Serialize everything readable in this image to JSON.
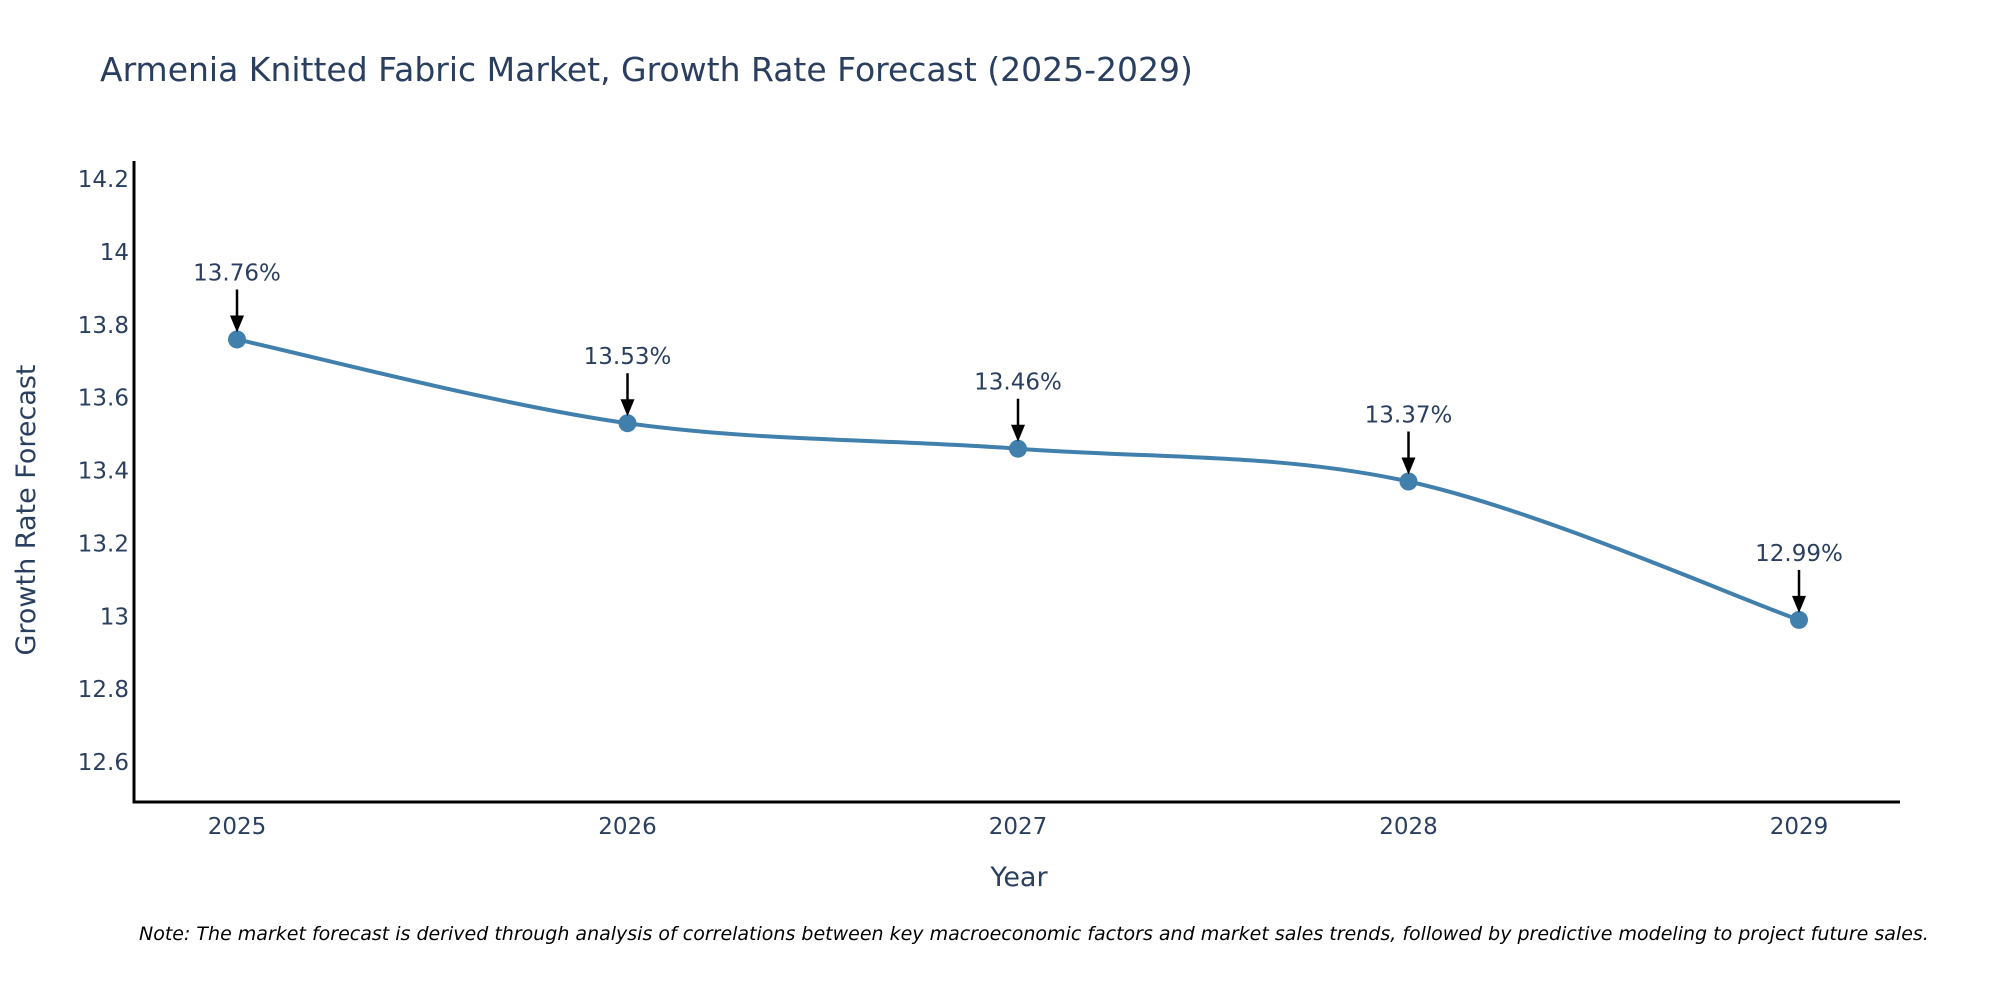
{
  "chart_data": {
    "type": "line",
    "title": "Armenia Knitted Fabric Market, Growth Rate Forecast (2025-2029)",
    "xlabel": "Year",
    "ylabel": "Growth Rate Forecast",
    "categories": [
      "2025",
      "2026",
      "2027",
      "2028",
      "2029"
    ],
    "series": [
      {
        "name": "Growth Rate Forecast",
        "values": [
          13.76,
          13.53,
          13.46,
          13.37,
          12.99
        ],
        "color": "#4180ad"
      }
    ],
    "data_labels": [
      "13.76%",
      "13.53%",
      "13.46%",
      "13.37%",
      "12.99%"
    ],
    "ylim": [
      12.49,
      14.25
    ],
    "yticks": [
      12.6,
      12.8,
      13,
      13.2,
      13.4,
      13.6,
      13.8,
      14,
      14.2
    ],
    "ytick_labels": [
      "12.6",
      "12.8",
      "13",
      "13.2",
      "13.4",
      "13.6",
      "13.8",
      "14",
      "14.2"
    ],
    "grid": false,
    "line_shape": "spline",
    "note": "Note: The market forecast is derived through analysis of correlations between key macroeconomic factors and market sales trends, followed by predictive modeling to project future sales."
  },
  "colors": {
    "line": "#4180ad",
    "text": "#2a3f5f",
    "axis": "#000000",
    "background": "#ffffff"
  }
}
